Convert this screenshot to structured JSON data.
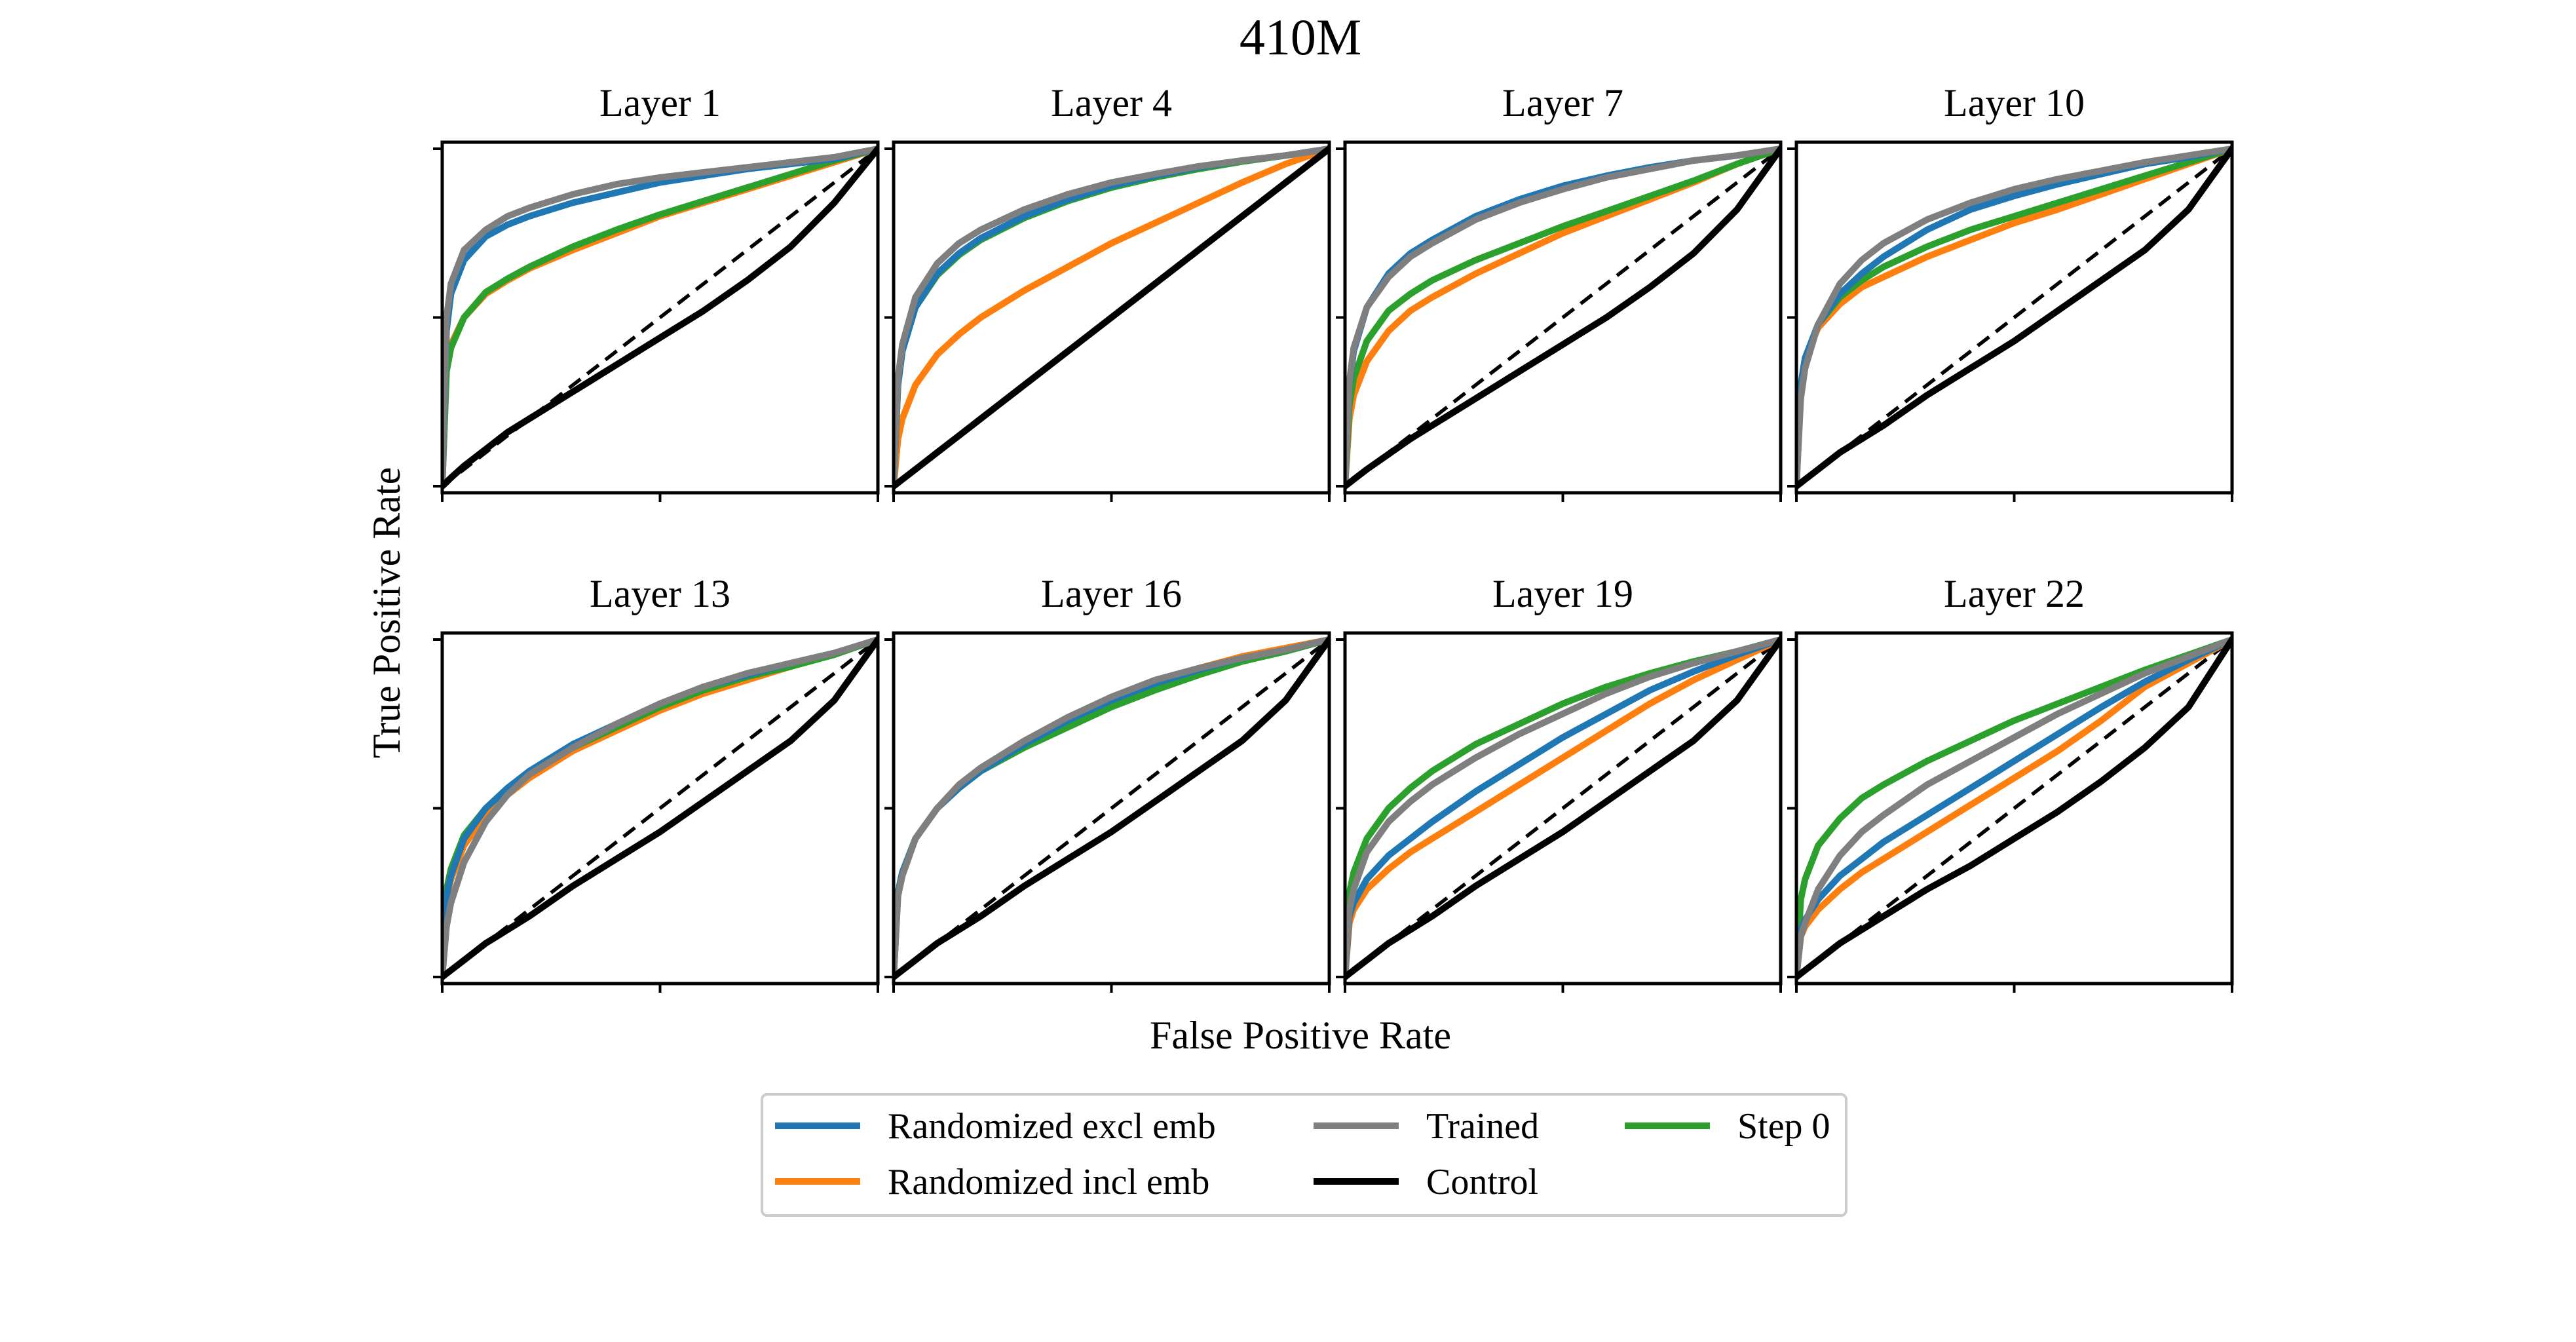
{
  "figure": {
    "title": "410M",
    "xlabel": "False Positive Rate",
    "ylabel": "True Positive Rate"
  },
  "colors": {
    "Randomized excl emb": "#1f77b4",
    "Randomized incl emb": "#ff7f0e",
    "Trained": "#7f7f7f",
    "Control": "#000000",
    "Step 0": "#2ca02c"
  },
  "legend": {
    "columns": [
      [
        "Randomized excl emb",
        "Randomized incl emb"
      ],
      [
        "Trained",
        "Control"
      ],
      [
        "Step 0"
      ]
    ]
  },
  "chart_data": {
    "type": "line",
    "xlim": [
      0,
      1
    ],
    "ylim": [
      0,
      1
    ],
    "grid": false,
    "diagonal_reference": "dashed",
    "legend_placement": "below",
    "x": [
      0,
      0.01,
      0.02,
      0.05,
      0.1,
      0.15,
      0.2,
      0.3,
      0.4,
      0.5,
      0.6,
      0.7,
      0.8,
      0.9,
      1
    ],
    "panels": [
      {
        "title": "Layer 1",
        "series": [
          {
            "name": "Randomized excl emb",
            "values": [
              0,
              0.46,
              0.57,
              0.67,
              0.74,
              0.775,
              0.8,
              0.84,
              0.87,
              0.9,
              0.92,
              0.94,
              0.955,
              0.97,
              1
            ]
          },
          {
            "name": "Randomized incl emb",
            "values": [
              0,
              0.35,
              0.42,
              0.5,
              0.57,
              0.61,
              0.645,
              0.7,
              0.75,
              0.8,
              0.84,
              0.88,
              0.92,
              0.96,
              1
            ]
          },
          {
            "name": "Trained",
            "values": [
              0,
              0.5,
              0.6,
              0.7,
              0.76,
              0.8,
              0.825,
              0.865,
              0.895,
              0.915,
              0.93,
              0.945,
              0.96,
              0.975,
              1
            ]
          },
          {
            "name": "Control",
            "values": [
              0,
              0.012,
              0.025,
              0.06,
              0.11,
              0.16,
              0.2,
              0.28,
              0.36,
              0.44,
              0.52,
              0.61,
              0.71,
              0.84,
              1
            ]
          },
          {
            "name": "Step 0",
            "values": [
              0,
              0.34,
              0.41,
              0.5,
              0.575,
              0.615,
              0.65,
              0.71,
              0.76,
              0.805,
              0.845,
              0.885,
              0.925,
              0.965,
              1
            ]
          }
        ]
      },
      {
        "title": "Layer 4",
        "series": [
          {
            "name": "Randomized excl emb",
            "values": [
              0,
              0.3,
              0.4,
              0.53,
              0.63,
              0.69,
              0.735,
              0.8,
              0.85,
              0.89,
              0.92,
              0.945,
              0.965,
              0.98,
              1
            ]
          },
          {
            "name": "Randomized incl emb",
            "values": [
              0,
              0.14,
              0.2,
              0.3,
              0.39,
              0.45,
              0.5,
              0.58,
              0.65,
              0.72,
              0.78,
              0.84,
              0.9,
              0.955,
              1
            ]
          },
          {
            "name": "Trained",
            "values": [
              0,
              0.32,
              0.42,
              0.56,
              0.66,
              0.72,
              0.76,
              0.82,
              0.865,
              0.9,
              0.925,
              0.948,
              0.965,
              0.98,
              1
            ]
          },
          {
            "name": "Control",
            "values": [
              0,
              0.01,
              0.02,
              0.05,
              0.1,
              0.15,
              0.2,
              0.3,
              0.4,
              0.5,
              0.6,
              0.7,
              0.8,
              0.9,
              1
            ]
          },
          {
            "name": "Step 0",
            "values": [
              0,
              0.3,
              0.4,
              0.53,
              0.625,
              0.685,
              0.73,
              0.795,
              0.845,
              0.885,
              0.915,
              0.94,
              0.962,
              0.98,
              1
            ]
          }
        ]
      },
      {
        "title": "Layer 7",
        "series": [
          {
            "name": "Randomized excl emb",
            "values": [
              0,
              0.3,
              0.4,
              0.53,
              0.63,
              0.69,
              0.73,
              0.8,
              0.85,
              0.89,
              0.92,
              0.945,
              0.965,
              0.98,
              1
            ]
          },
          {
            "name": "Randomized incl emb",
            "values": [
              0,
              0.2,
              0.27,
              0.37,
              0.46,
              0.52,
              0.56,
              0.63,
              0.69,
              0.75,
              0.8,
              0.85,
              0.9,
              0.955,
              1
            ]
          },
          {
            "name": "Trained",
            "values": [
              0,
              0.31,
              0.41,
              0.53,
              0.62,
              0.68,
              0.72,
              0.79,
              0.84,
              0.88,
              0.915,
              0.94,
              0.965,
              0.98,
              1
            ]
          },
          {
            "name": "Control",
            "values": [
              0,
              0.01,
              0.02,
              0.05,
              0.095,
              0.14,
              0.18,
              0.26,
              0.34,
              0.42,
              0.5,
              0.59,
              0.69,
              0.82,
              1
            ]
          },
          {
            "name": "Step 0",
            "values": [
              0,
              0.24,
              0.32,
              0.43,
              0.52,
              0.57,
              0.61,
              0.67,
              0.72,
              0.77,
              0.815,
              0.86,
              0.905,
              0.955,
              1
            ]
          }
        ]
      },
      {
        "title": "Layer 10",
        "series": [
          {
            "name": "Randomized excl emb",
            "values": [
              0,
              0.3,
              0.38,
              0.48,
              0.57,
              0.63,
              0.68,
              0.76,
              0.82,
              0.86,
              0.895,
              0.925,
              0.955,
              0.975,
              1
            ]
          },
          {
            "name": "Randomized incl emb",
            "values": [
              0,
              0.3,
              0.38,
              0.47,
              0.54,
              0.59,
              0.62,
              0.68,
              0.73,
              0.78,
              0.82,
              0.865,
              0.91,
              0.955,
              1
            ]
          },
          {
            "name": "Trained",
            "values": [
              0,
              0.26,
              0.35,
              0.48,
              0.6,
              0.67,
              0.72,
              0.79,
              0.84,
              0.88,
              0.91,
              0.935,
              0.96,
              0.98,
              1
            ]
          },
          {
            "name": "Control",
            "values": [
              0,
              0.01,
              0.02,
              0.05,
              0.1,
              0.14,
              0.18,
              0.27,
              0.35,
              0.43,
              0.52,
              0.61,
              0.7,
              0.82,
              1
            ]
          },
          {
            "name": "Step 0",
            "values": [
              0,
              0.3,
              0.38,
              0.48,
              0.56,
              0.61,
              0.65,
              0.71,
              0.76,
              0.8,
              0.84,
              0.88,
              0.92,
              0.96,
              1
            ]
          }
        ]
      },
      {
        "title": "Layer 13",
        "series": [
          {
            "name": "Randomized excl emb",
            "values": [
              0,
              0.24,
              0.3,
              0.41,
              0.5,
              0.56,
              0.61,
              0.69,
              0.75,
              0.81,
              0.86,
              0.895,
              0.93,
              0.96,
              1
            ]
          },
          {
            "name": "Randomized incl emb",
            "values": [
              0,
              0.23,
              0.29,
              0.39,
              0.48,
              0.54,
              0.59,
              0.67,
              0.73,
              0.79,
              0.84,
              0.88,
              0.92,
              0.96,
              1
            ]
          },
          {
            "name": "Trained",
            "values": [
              0,
              0.15,
              0.22,
              0.34,
              0.46,
              0.54,
              0.6,
              0.68,
              0.75,
              0.81,
              0.86,
              0.9,
              0.93,
              0.96,
              1
            ]
          },
          {
            "name": "Control",
            "values": [
              0,
              0.01,
              0.02,
              0.05,
              0.1,
              0.14,
              0.18,
              0.27,
              0.35,
              0.43,
              0.52,
              0.61,
              0.7,
              0.82,
              1
            ]
          },
          {
            "name": "Step 0",
            "values": [
              0,
              0.26,
              0.32,
              0.42,
              0.5,
              0.56,
              0.61,
              0.68,
              0.74,
              0.8,
              0.85,
              0.89,
              0.92,
              0.955,
              1
            ]
          }
        ]
      },
      {
        "title": "Layer 16",
        "series": [
          {
            "name": "Randomized excl emb",
            "values": [
              0,
              0.25,
              0.31,
              0.41,
              0.5,
              0.56,
              0.61,
              0.69,
              0.76,
              0.82,
              0.87,
              0.91,
              0.945,
              0.97,
              1
            ]
          },
          {
            "name": "Randomized incl emb",
            "values": [
              0,
              0.25,
              0.31,
              0.41,
              0.5,
              0.56,
              0.61,
              0.69,
              0.76,
              0.82,
              0.875,
              0.915,
              0.95,
              0.975,
              1
            ]
          },
          {
            "name": "Trained",
            "values": [
              0,
              0.24,
              0.3,
              0.41,
              0.5,
              0.57,
              0.62,
              0.7,
              0.77,
              0.83,
              0.88,
              0.915,
              0.945,
              0.97,
              1
            ]
          },
          {
            "name": "Control",
            "values": [
              0,
              0.01,
              0.02,
              0.05,
              0.1,
              0.14,
              0.18,
              0.27,
              0.35,
              0.43,
              0.52,
              0.61,
              0.7,
              0.82,
              1
            ]
          },
          {
            "name": "Step 0",
            "values": [
              0,
              0.25,
              0.31,
              0.41,
              0.5,
              0.56,
              0.61,
              0.68,
              0.74,
              0.8,
              0.85,
              0.895,
              0.935,
              0.965,
              1
            ]
          }
        ]
      },
      {
        "title": "Layer 19",
        "series": [
          {
            "name": "Randomized excl emb",
            "values": [
              0,
              0.18,
              0.22,
              0.29,
              0.36,
              0.41,
              0.46,
              0.55,
              0.63,
              0.71,
              0.78,
              0.85,
              0.905,
              0.955,
              1
            ]
          },
          {
            "name": "Randomized incl emb",
            "values": [
              0,
              0.16,
              0.2,
              0.26,
              0.32,
              0.37,
              0.41,
              0.49,
              0.57,
              0.65,
              0.73,
              0.81,
              0.88,
              0.94,
              1
            ]
          },
          {
            "name": "Trained",
            "values": [
              0,
              0.2,
              0.26,
              0.37,
              0.46,
              0.52,
              0.57,
              0.65,
              0.72,
              0.78,
              0.84,
              0.89,
              0.93,
              0.965,
              1
            ]
          },
          {
            "name": "Control",
            "values": [
              0,
              0.01,
              0.02,
              0.05,
              0.1,
              0.14,
              0.18,
              0.27,
              0.35,
              0.43,
              0.52,
              0.61,
              0.7,
              0.82,
              1
            ]
          },
          {
            "name": "Step 0",
            "values": [
              0,
              0.25,
              0.31,
              0.41,
              0.5,
              0.56,
              0.61,
              0.69,
              0.75,
              0.81,
              0.86,
              0.9,
              0.935,
              0.965,
              1
            ]
          }
        ]
      },
      {
        "title": "Layer 22",
        "series": [
          {
            "name": "Randomized excl emb",
            "values": [
              0,
              0.14,
              0.17,
              0.23,
              0.3,
              0.35,
              0.4,
              0.48,
              0.56,
              0.64,
              0.72,
              0.8,
              0.875,
              0.94,
              1
            ]
          },
          {
            "name": "Randomized incl emb",
            "values": [
              0,
              0.12,
              0.15,
              0.2,
              0.26,
              0.31,
              0.35,
              0.43,
              0.51,
              0.59,
              0.67,
              0.76,
              0.86,
              0.93,
              1
            ]
          },
          {
            "name": "Trained",
            "values": [
              0,
              0.12,
              0.16,
              0.26,
              0.36,
              0.43,
              0.48,
              0.57,
              0.64,
              0.71,
              0.78,
              0.84,
              0.9,
              0.95,
              1
            ]
          },
          {
            "name": "Control",
            "values": [
              0,
              0.01,
              0.02,
              0.05,
              0.1,
              0.14,
              0.18,
              0.26,
              0.33,
              0.41,
              0.49,
              0.58,
              0.68,
              0.8,
              1
            ]
          },
          {
            "name": "Step 0",
            "values": [
              0,
              0.23,
              0.29,
              0.39,
              0.47,
              0.53,
              0.57,
              0.64,
              0.7,
              0.76,
              0.81,
              0.86,
              0.91,
              0.955,
              1
            ]
          }
        ]
      }
    ]
  }
}
